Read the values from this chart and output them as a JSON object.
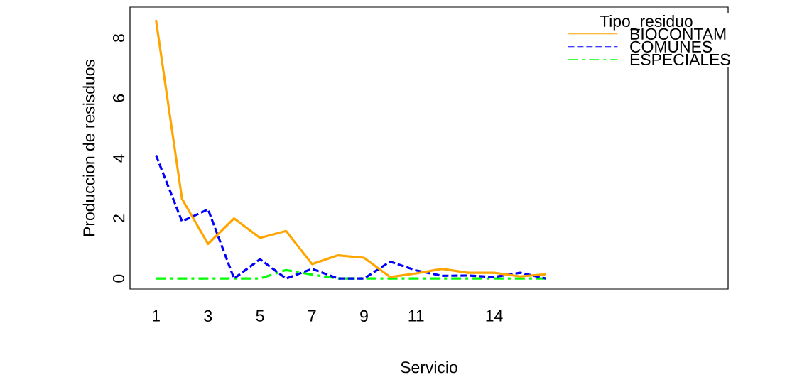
{
  "chart_data": {
    "type": "line",
    "xlabel": "Servicio",
    "ylabel": "Produccion de resisduos",
    "legend_title": "Tipo_residuo",
    "x": [
      1,
      2,
      3,
      4,
      5,
      6,
      7,
      8,
      9,
      10,
      11,
      12,
      13,
      14,
      15,
      16
    ],
    "xlim": [
      0,
      23
    ],
    "xticks": [
      1,
      3,
      5,
      7,
      9,
      11,
      14
    ],
    "ylim": [
      -0.35,
      9.03
    ],
    "yticks": [
      0,
      2,
      4,
      6,
      8
    ],
    "legend": "top right",
    "grid": false,
    "marker": "none",
    "series": [
      {
        "name": "BIOCONTAM",
        "color": "#ffa500",
        "line_style": "solid",
        "values": [
          8.6,
          2.65,
          1.15,
          2.0,
          1.35,
          1.58,
          0.48,
          0.77,
          0.69,
          0.05,
          0.17,
          0.32,
          0.19,
          0.19,
          0.07,
          0.14
        ]
      },
      {
        "name": "COMUNES",
        "color": "#0000ff",
        "line_style": "dashed",
        "values": [
          4.1,
          1.9,
          2.3,
          0.0,
          0.64,
          0.0,
          0.32,
          0.0,
          0.0,
          0.56,
          0.27,
          0.09,
          0.1,
          0.05,
          0.19,
          0.0
        ]
      },
      {
        "name": "ESPECIALES",
        "color": "#00ff00",
        "line_style": "dashdot",
        "values": [
          0,
          0,
          0,
          0,
          0,
          0.28,
          0.13,
          0,
          0,
          0,
          0,
          0,
          0,
          0,
          0,
          0
        ]
      }
    ]
  }
}
